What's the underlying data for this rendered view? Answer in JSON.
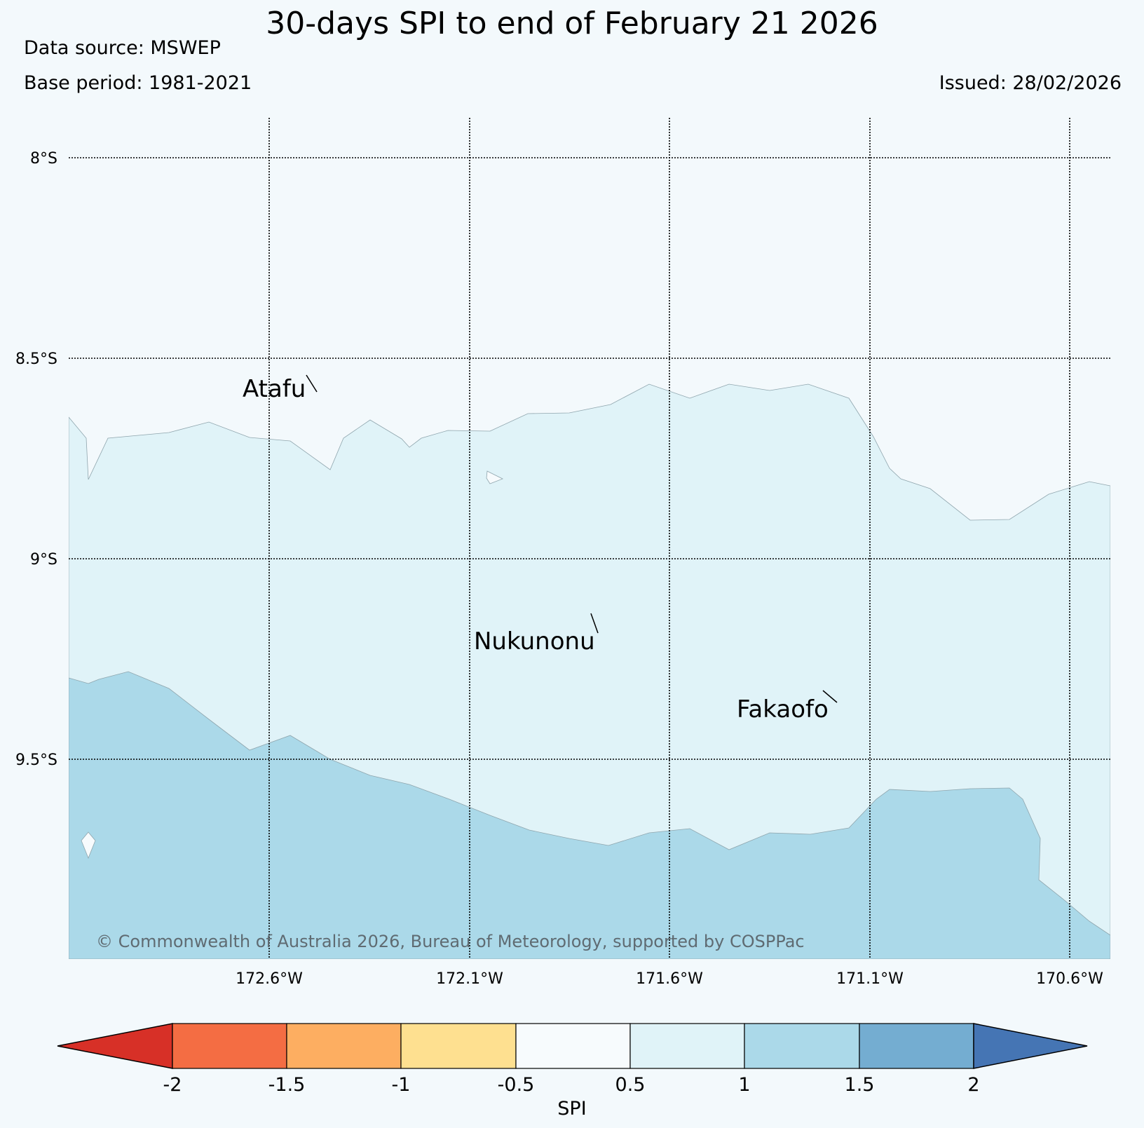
{
  "header": {
    "title": "30-days SPI to end of February 21 2026",
    "data_source": "Data source: MSWEP",
    "base_period": "Base period: 1981-2021",
    "issued": "Issued: 28/02/2026"
  },
  "map": {
    "lat_labels": [
      "8°S",
      "8.5°S",
      "9°S",
      "9.5°S"
    ],
    "lon_labels": [
      "172.6°W",
      "172.1°W",
      "171.6°W",
      "171.1°W",
      "170.6°W"
    ],
    "places": [
      "Atafu",
      "Nukunonu",
      "Fakaofo"
    ],
    "copyright": "© Commonwealth of Australia 2026, Bureau of Meteorology, supported by COSPPac",
    "region_colors": {
      "spi_0_5_to_1": "#e0f3f8",
      "spi_1_to_1_5": "#abd9e9"
    }
  },
  "colorbar": {
    "label": "SPI",
    "tick_labels": [
      "-2",
      "-1.5",
      "-1",
      "-0.5",
      "0.5",
      "1",
      "1.5",
      "2"
    ],
    "colors": {
      "below_min": "#d73027",
      "bins": [
        "#f46d43",
        "#fdae61",
        "#fee090",
        "#f7fbfd",
        "#e0f3f8",
        "#abd9e9",
        "#74add1"
      ],
      "above_max": "#4575b4"
    }
  }
}
